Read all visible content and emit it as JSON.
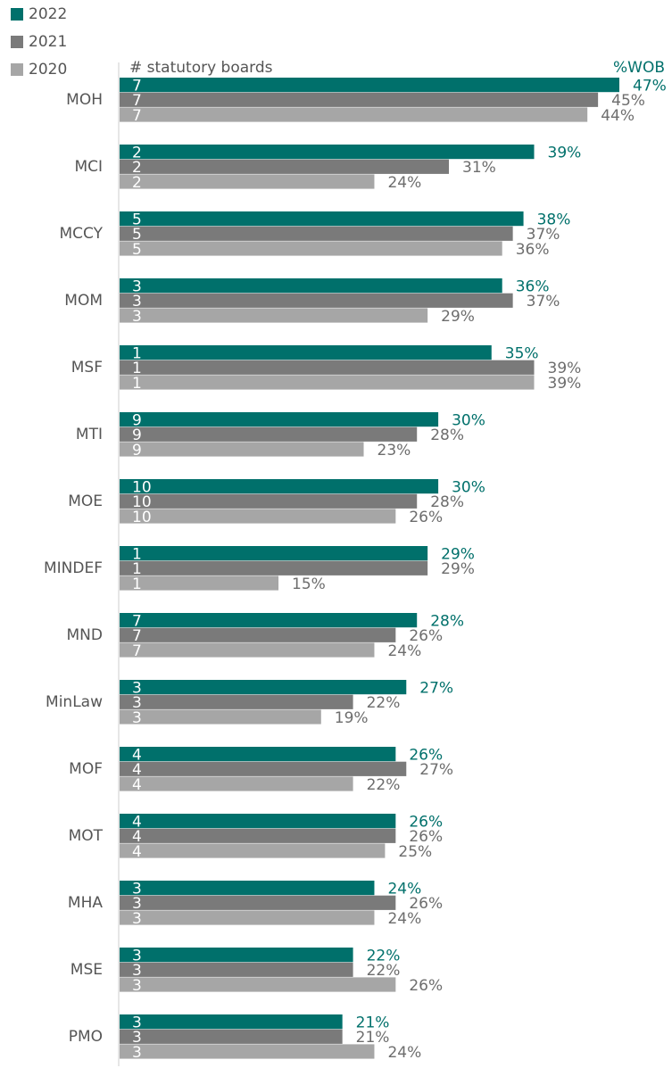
{
  "chart_data": {
    "type": "hbar",
    "annotations": [
      "# statutory boards",
      "%WOB"
    ],
    "categories": [
      "MOH",
      "MCI",
      "MCCY",
      "MOM",
      "MSF",
      "MTI",
      "MOE",
      "MINDEF",
      "MND",
      "MinLaw",
      "MOF",
      "MOT",
      "MHA",
      "MSE",
      "PMO"
    ],
    "series": [
      {
        "name": "2022",
        "color": "#00706b",
        "label_color": "#00706b",
        "values": [
          47,
          39,
          38,
          36,
          35,
          30,
          30,
          29,
          28,
          27,
          26,
          26,
          24,
          22,
          21
        ],
        "value_labels": [
          "47%",
          "39%",
          "38%",
          "36%",
          "35%",
          "30%",
          "30%",
          "29%",
          "28%",
          "27%",
          "26%",
          "26%",
          "24%",
          "22%",
          "21%"
        ],
        "boards": [
          7,
          2,
          5,
          3,
          1,
          9,
          10,
          1,
          7,
          3,
          4,
          4,
          3,
          3,
          3
        ]
      },
      {
        "name": "2021",
        "color": "#7a7a7a",
        "label_color": "#6d6d6d",
        "values": [
          45,
          31,
          37,
          37,
          39,
          28,
          28,
          29,
          26,
          22,
          27,
          26,
          26,
          22,
          21
        ],
        "value_labels": [
          "45%",
          "31%",
          "37%",
          "37%",
          "39%",
          "28%",
          "28%",
          "29%",
          "26%",
          "22%",
          "27%",
          "26%",
          "26%",
          "22%",
          "21%"
        ],
        "boards": [
          7,
          2,
          5,
          3,
          1,
          9,
          10,
          1,
          7,
          3,
          4,
          4,
          3,
          3,
          3
        ]
      },
      {
        "name": "2020",
        "color": "#a6a6a6",
        "label_color": "#6d6d6d",
        "values": [
          44,
          24,
          36,
          29,
          39,
          23,
          26,
          15,
          24,
          19,
          22,
          25,
          24,
          26,
          24
        ],
        "value_labels": [
          "44%",
          "24%",
          "36%",
          "29%",
          "39%",
          "23%",
          "26%",
          "15%",
          "24%",
          "19%",
          "22%",
          "25%",
          "24%",
          "26%",
          "24%"
        ],
        "boards": [
          7,
          2,
          5,
          3,
          1,
          9,
          10,
          1,
          7,
          3,
          4,
          4,
          3,
          3,
          3
        ]
      }
    ]
  }
}
